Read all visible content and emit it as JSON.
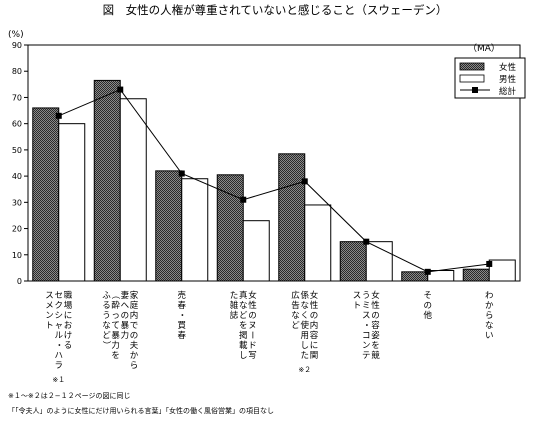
{
  "chart_data": {
    "type": "bar",
    "title": "図　女性の人権が尊重されていないと感じること（スウェーデン）",
    "ylabel": "(%)",
    "unit_note": "（MA）",
    "ylim": [
      0,
      90
    ],
    "yticks": [
      "0",
      "10",
      "20",
      "30",
      "40",
      "50",
      "60",
      "70",
      "80",
      "90"
    ],
    "categories": [
      [
        "職場における",
        "セクシャル・ハラ",
        "スメント"
      ],
      [
        "家庭内での夫から",
        "妻への暴力",
        "（酔って暴力を",
        "ふるうなど）"
      ],
      [
        "売春・買春"
      ],
      [
        "女性のヌード写",
        "真などを掲載し",
        "た雑誌"
      ],
      [
        "女性の内容に関",
        "係なく使用した",
        "広告など"
      ],
      [
        "女性の容姿を競",
        "うミス・コンテ",
        "スト"
      ],
      [
        "その他"
      ],
      [
        "わからない"
      ]
    ],
    "category_notes": [
      "※１",
      "",
      "",
      "",
      "※２",
      "",
      "",
      ""
    ],
    "series": [
      {
        "name": "女性",
        "values": [
          66,
          76.5,
          42,
          40.5,
          48.5,
          15,
          3.5,
          4.5
        ],
        "color": "#555555"
      },
      {
        "name": "男性",
        "values": [
          60,
          69.5,
          39,
          23,
          29,
          15,
          4,
          8
        ],
        "color": "#ffffff"
      },
      {
        "name": "総計",
        "values": [
          63,
          73,
          41,
          31,
          38,
          15,
          3.5,
          6.5
        ],
        "color": "#000000"
      }
    ],
    "legend_position": "top-right",
    "grid": false
  },
  "footnotes": [
    "※１〜※２は２−１２ページの図に同じ",
    "「「令夫人」のように女性にだけ用いられる言葉」「女性の働く風俗営業」の項目なし"
  ]
}
